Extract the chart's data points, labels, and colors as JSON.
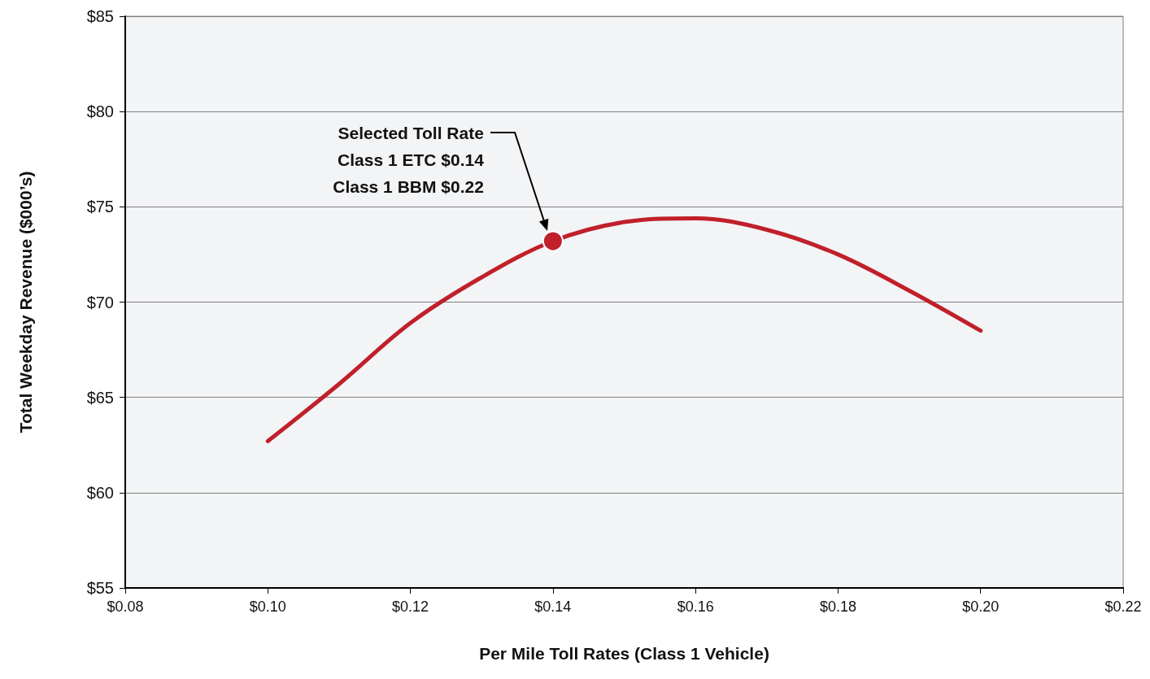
{
  "chart_data": {
    "type": "line",
    "xlabel": "Per Mile Toll Rates (Class 1 Vehicle)",
    "ylabel": "Total Weekday Revenue ($000’s)",
    "x": [
      0.1,
      0.11,
      0.12,
      0.13,
      0.14,
      0.15,
      0.16,
      0.17,
      0.18,
      0.19,
      0.2
    ],
    "series": [
      {
        "color": "#c0202a",
        "marker": "none",
        "values": [
          62.7,
          65.7,
          68.9,
          71.3,
          73.2,
          74.2,
          74.4,
          73.8,
          72.5,
          70.6,
          68.5
        ]
      },
      {
        "type": "scatter",
        "color": "#c0202a",
        "marker": "circle",
        "x": [
          0.14
        ],
        "values": [
          73.2
        ]
      }
    ],
    "xlim": [
      0.08,
      0.22
    ],
    "xticks": [
      {
        "value": 0.08,
        "label": "$0.08"
      },
      {
        "value": 0.1,
        "label": "$0.10"
      },
      {
        "value": 0.12,
        "label": "$0.12"
      },
      {
        "value": 0.14,
        "label": "$0.14"
      },
      {
        "value": 0.16,
        "label": "$0.16"
      },
      {
        "value": 0.18,
        "label": "$0.18"
      },
      {
        "value": 0.2,
        "label": "$0.20"
      },
      {
        "value": 0.22,
        "label": "$0.22"
      }
    ],
    "ylim": [
      55,
      85
    ],
    "yticks": [
      {
        "value": 55,
        "label": "$55"
      },
      {
        "value": 60,
        "label": "$60"
      },
      {
        "value": 65,
        "label": "$65"
      },
      {
        "value": 70,
        "label": "$70"
      },
      {
        "value": 75,
        "label": "$75"
      },
      {
        "value": 80,
        "label": "$80"
      },
      {
        "value": 85,
        "label": "$85"
      }
    ],
    "grid": "y",
    "annotations": [
      "Selected Toll Rate\nClass 1 ETC $0.14\nClass 1 BBM $0.22"
    ]
  }
}
